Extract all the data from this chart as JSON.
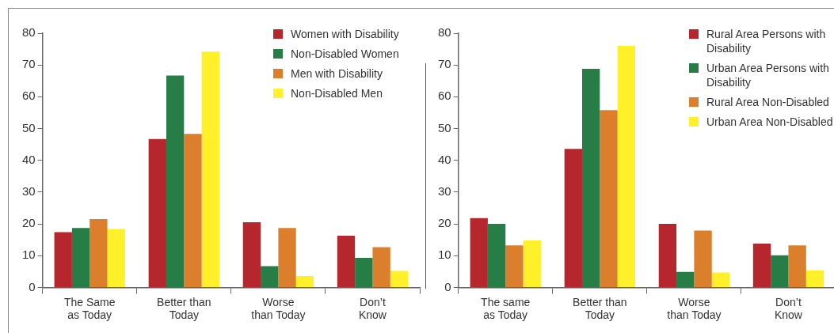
{
  "chart_data": [
    {
      "type": "bar",
      "categories": [
        "The Same\nas Today",
        "Better than\nToday",
        "Worse\nthan Today",
        "Don’t\nKnow"
      ],
      "series": [
        {
          "name": "Women with Disability",
          "color": "#b5272d",
          "values": [
            17.4,
            46.7,
            20.5,
            16.3
          ]
        },
        {
          "name": "Non-Disabled Women",
          "color": "#267d45",
          "values": [
            18.7,
            66.7,
            6.7,
            9.3
          ]
        },
        {
          "name": "Men with Disability",
          "color": "#db7f2c",
          "values": [
            21.5,
            48.3,
            18.7,
            12.7
          ]
        },
        {
          "name": "Non-Disabled Men",
          "color": "#fff02a",
          "values": [
            18.4,
            74.2,
            3.6,
            5.2
          ]
        }
      ],
      "ylim": [
        0,
        80
      ],
      "yticks": [
        0,
        10,
        20,
        30,
        40,
        50,
        60,
        70,
        80
      ],
      "grid": false,
      "legend": "top right"
    },
    {
      "type": "bar",
      "categories": [
        "The same\nas Today",
        "Better than\nToday",
        "Worse\nthan Today",
        "Don’t\nKnow"
      ],
      "series": [
        {
          "name": "Rural Area Persons with Disability",
          "color": "#b5272d",
          "values": [
            21.8,
            43.6,
            20.0,
            13.8
          ]
        },
        {
          "name": "Urban Area Persons with Disability",
          "color": "#267d45",
          "values": [
            20.0,
            68.8,
            4.9,
            10.1
          ]
        },
        {
          "name": "Rural Area Non-Disabled",
          "color": "#db7f2c",
          "values": [
            13.2,
            55.8,
            17.9,
            13.2
          ]
        },
        {
          "name": "Urban Area Non-Disabled",
          "color": "#fff02a",
          "values": [
            14.8,
            76.0,
            4.7,
            5.4
          ]
        }
      ],
      "ylim": [
        0,
        80
      ],
      "yticks": [
        0,
        10,
        20,
        30,
        40,
        50,
        60,
        70,
        80
      ],
      "grid": false,
      "legend": "top right"
    }
  ]
}
